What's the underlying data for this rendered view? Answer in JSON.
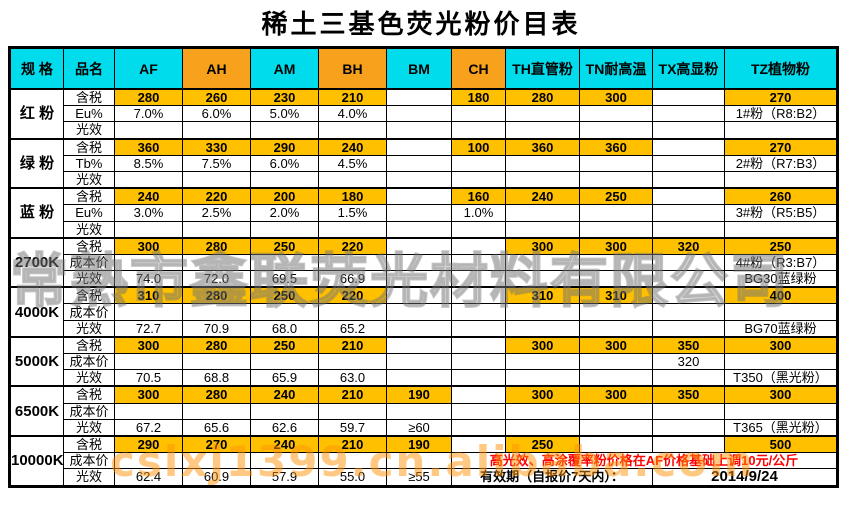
{
  "title": "稀土三基色荧光粉价目表",
  "colors": {
    "header_cyan": "#00dcec",
    "header_orange": "#f7a11c",
    "highlight_gold": "#ffc000",
    "note_red": "#ff0000",
    "border_black": "#000000"
  },
  "watermarks": {
    "company": "常熟市鑫联荧光材料有限公司",
    "url": "cslxj1399.cn.alibaba.com"
  },
  "table": {
    "columns": [
      {
        "key": "spec",
        "label": "规 格",
        "fill": "cyan"
      },
      {
        "key": "name",
        "label": "品名",
        "fill": "cyan"
      },
      {
        "key": "AF",
        "label": "AF",
        "fill": "cyan"
      },
      {
        "key": "AH",
        "label": "AH",
        "fill": "orange"
      },
      {
        "key": "AM",
        "label": "AM",
        "fill": "cyan"
      },
      {
        "key": "BH",
        "label": "BH",
        "fill": "orange"
      },
      {
        "key": "BM",
        "label": "BM",
        "fill": "cyan"
      },
      {
        "key": "CH",
        "label": "CH",
        "fill": "orange"
      },
      {
        "key": "TH",
        "label": "TH直管粉",
        "fill": "cyan"
      },
      {
        "key": "TN",
        "label": "TN耐高温",
        "fill": "cyan"
      },
      {
        "key": "TX",
        "label": "TX高显粉",
        "fill": "cyan"
      },
      {
        "key": "TZ",
        "label": "TZ植物粉",
        "fill": "cyan"
      }
    ],
    "groups": [
      {
        "spec": "红 粉",
        "rows": [
          {
            "label": "含税",
            "cells": [
              {
                "v": "280",
                "hl": 1
              },
              {
                "v": "260",
                "hl": 1
              },
              {
                "v": "230",
                "hl": 1
              },
              {
                "v": "210",
                "hl": 1
              },
              {},
              {
                "v": "180",
                "hl": 1
              },
              {
                "v": "280",
                "hl": 1
              },
              {
                "v": "300",
                "hl": 1
              },
              {},
              {
                "v": "270",
                "hl": 1
              }
            ]
          },
          {
            "label": "Eu%",
            "cells": [
              {
                "v": "7.0%"
              },
              {
                "v": "6.0%"
              },
              {
                "v": "5.0%"
              },
              {
                "v": "4.0%"
              },
              {},
              {},
              {},
              {},
              {},
              {
                "v": "1#粉（R8:B2）"
              }
            ]
          },
          {
            "label": "光效",
            "cells": [
              {},
              {},
              {},
              {},
              {},
              {},
              {},
              {},
              {},
              {}
            ]
          }
        ]
      },
      {
        "spec": "绿 粉",
        "rows": [
          {
            "label": "含税",
            "cells": [
              {
                "v": "360",
                "hl": 1
              },
              {
                "v": "330",
                "hl": 1
              },
              {
                "v": "290",
                "hl": 1
              },
              {
                "v": "240",
                "hl": 1
              },
              {},
              {
                "v": "100",
                "hl": 1
              },
              {
                "v": "360",
                "hl": 1
              },
              {
                "v": "360",
                "hl": 1
              },
              {},
              {
                "v": "270",
                "hl": 1
              }
            ]
          },
          {
            "label": "Tb%",
            "cells": [
              {
                "v": "8.5%"
              },
              {
                "v": "7.5%"
              },
              {
                "v": "6.0%"
              },
              {
                "v": "4.5%"
              },
              {},
              {},
              {},
              {},
              {},
              {
                "v": "2#粉（R7:B3）"
              }
            ]
          },
          {
            "label": "光效",
            "cells": [
              {},
              {},
              {},
              {},
              {},
              {},
              {},
              {},
              {},
              {}
            ]
          }
        ]
      },
      {
        "spec": "蓝 粉",
        "rows": [
          {
            "label": "含税",
            "cells": [
              {
                "v": "240",
                "hl": 1
              },
              {
                "v": "220",
                "hl": 1
              },
              {
                "v": "200",
                "hl": 1
              },
              {
                "v": "180",
                "hl": 1
              },
              {},
              {
                "v": "160",
                "hl": 1
              },
              {
                "v": "240",
                "hl": 1
              },
              {
                "v": "250",
                "hl": 1
              },
              {},
              {
                "v": "260",
                "hl": 1
              }
            ]
          },
          {
            "label": "Eu%",
            "cells": [
              {
                "v": "3.0%"
              },
              {
                "v": "2.5%"
              },
              {
                "v": "2.0%"
              },
              {
                "v": "1.5%"
              },
              {},
              {
                "v": "1.0%"
              },
              {},
              {},
              {},
              {
                "v": "3#粉（R5:B5）"
              }
            ]
          },
          {
            "label": "光效",
            "cells": [
              {},
              {},
              {},
              {},
              {},
              {},
              {},
              {},
              {},
              {}
            ]
          }
        ]
      },
      {
        "spec": "2700K",
        "rows": [
          {
            "label": "含税",
            "cells": [
              {
                "v": "300",
                "hl": 1
              },
              {
                "v": "280",
                "hl": 1
              },
              {
                "v": "250",
                "hl": 1
              },
              {
                "v": "220",
                "hl": 1
              },
              {},
              {},
              {
                "v": "300",
                "hl": 1
              },
              {
                "v": "300",
                "hl": 1
              },
              {
                "v": "320",
                "hl": 1
              },
              {
                "v": "250",
                "hl": 1
              }
            ]
          },
          {
            "label": "成本价",
            "cells": [
              {},
              {},
              {},
              {},
              {},
              {},
              {},
              {},
              {},
              {
                "v": "4#粉（R3:B7）"
              }
            ]
          },
          {
            "label": "光效",
            "cells": [
              {
                "v": "74.0"
              },
              {
                "v": "72.0"
              },
              {
                "v": "69.5"
              },
              {
                "v": "66.9"
              },
              {},
              {},
              {},
              {},
              {},
              {
                "v": "BG30蓝绿粉"
              }
            ]
          }
        ]
      },
      {
        "spec": "4000K",
        "rows": [
          {
            "label": "含税",
            "cells": [
              {
                "v": "310",
                "hl": 1
              },
              {
                "v": "280",
                "hl": 1
              },
              {
                "v": "250",
                "hl": 1
              },
              {
                "v": "220",
                "hl": 1
              },
              {},
              {},
              {
                "v": "310",
                "hl": 1
              },
              {
                "v": "310",
                "hl": 1
              },
              {},
              {
                "v": "400",
                "hl": 1
              }
            ]
          },
          {
            "label": "成本价",
            "cells": [
              {},
              {},
              {},
              {},
              {},
              {},
              {},
              {},
              {},
              {}
            ]
          },
          {
            "label": "光效",
            "cells": [
              {
                "v": "72.7"
              },
              {
                "v": "70.9"
              },
              {
                "v": "68.0"
              },
              {
                "v": "65.2"
              },
              {},
              {},
              {},
              {},
              {},
              {
                "v": "BG70蓝绿粉"
              }
            ]
          }
        ]
      },
      {
        "spec": "5000K",
        "rows": [
          {
            "label": "含税",
            "cells": [
              {
                "v": "300",
                "hl": 1
              },
              {
                "v": "280",
                "hl": 1
              },
              {
                "v": "250",
                "hl": 1
              },
              {
                "v": "210",
                "hl": 1
              },
              {},
              {},
              {
                "v": "300",
                "hl": 1
              },
              {
                "v": "300",
                "hl": 1
              },
              {
                "v": "350",
                "hl": 1
              },
              {
                "v": "300",
                "hl": 1
              }
            ]
          },
          {
            "label": "成本价",
            "cells": [
              {},
              {},
              {},
              {},
              {},
              {},
              {},
              {},
              {
                "v": "320"
              },
              {}
            ]
          },
          {
            "label": "光效",
            "cells": [
              {
                "v": "70.5"
              },
              {
                "v": "68.8"
              },
              {
                "v": "65.9"
              },
              {
                "v": "63.0"
              },
              {},
              {},
              {},
              {},
              {},
              {
                "v": "T350（黑光粉）"
              }
            ]
          }
        ]
      },
      {
        "spec": "6500K",
        "rows": [
          {
            "label": "含税",
            "cells": [
              {
                "v": "300",
                "hl": 1
              },
              {
                "v": "280",
                "hl": 1
              },
              {
                "v": "240",
                "hl": 1
              },
              {
                "v": "210",
                "hl": 1
              },
              {
                "v": "190",
                "hl": 1
              },
              {},
              {
                "v": "300",
                "hl": 1
              },
              {
                "v": "300",
                "hl": 1
              },
              {
                "v": "350",
                "hl": 1
              },
              {
                "v": "300",
                "hl": 1
              }
            ]
          },
          {
            "label": "成本价",
            "cells": [
              {},
              {},
              {},
              {},
              {},
              {},
              {},
              {},
              {},
              {}
            ]
          },
          {
            "label": "光效",
            "cells": [
              {
                "v": "67.2"
              },
              {
                "v": "65.6"
              },
              {
                "v": "62.6"
              },
              {
                "v": "59.7"
              },
              {
                "v": "≥60"
              },
              {},
              {},
              {},
              {},
              {
                "v": "T365（黑光粉）"
              }
            ]
          }
        ]
      },
      {
        "spec": "10000K",
        "rows": [
          {
            "label": "含税",
            "cells": [
              {
                "v": "290",
                "hl": 1
              },
              {
                "v": "270",
                "hl": 1
              },
              {
                "v": "240",
                "hl": 1
              },
              {
                "v": "210",
                "hl": 1
              },
              {
                "v": "190",
                "hl": 1
              },
              {},
              {
                "v": "250",
                "hl": 1
              },
              {},
              {},
              {
                "v": "500",
                "hl": 1
              }
            ]
          },
          {
            "label": "成本价",
            "cells": [
              {},
              {},
              {},
              {},
              {},
              {
                "v": "高光效、高涂覆率粉价格在AF价格基础上调10元/公斤",
                "span": 5,
                "cls": "note-red"
              }
            ]
          },
          {
            "label": "光效",
            "cells": [
              {
                "v": "62.4"
              },
              {
                "v": "60.9"
              },
              {
                "v": "57.9"
              },
              {
                "v": "55.0"
              },
              {
                "v": "≥55"
              },
              {
                "v": "有效期（自报价7天内）：",
                "span": 3,
                "cls": "bold"
              },
              {
                "v": "2014/9/24",
                "span": 2,
                "cls": "bold date"
              }
            ]
          }
        ]
      }
    ]
  }
}
